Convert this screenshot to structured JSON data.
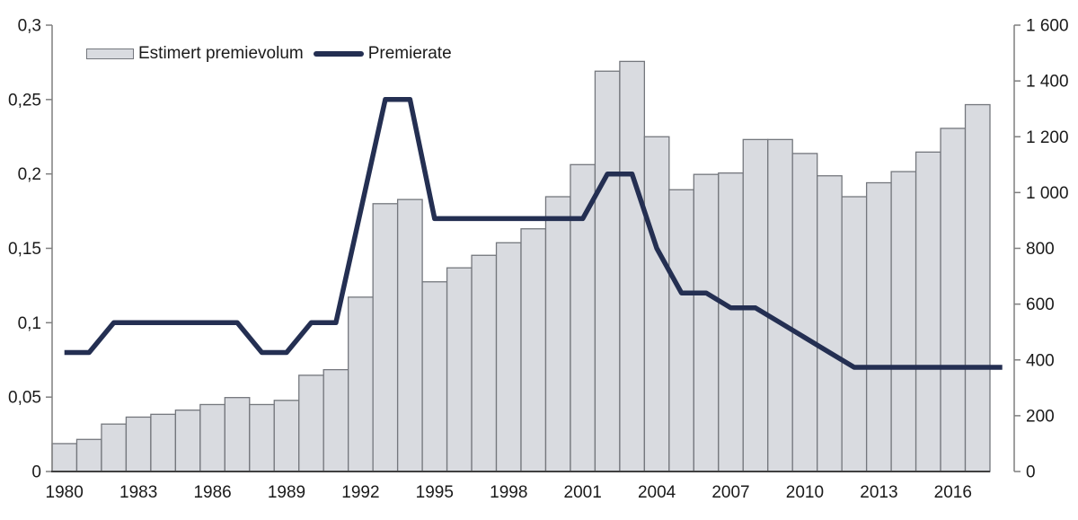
{
  "chart_data": {
    "type": "combo_bar_line",
    "title": "",
    "xlabel": "",
    "ylabel_left": "",
    "ylabel_right": "",
    "categories": [
      1980,
      1981,
      1982,
      1983,
      1984,
      1985,
      1986,
      1987,
      1988,
      1989,
      1990,
      1991,
      1992,
      1993,
      1994,
      1995,
      1996,
      1997,
      1998,
      1999,
      2000,
      2001,
      2002,
      2003,
      2004,
      2005,
      2006,
      2007,
      2008,
      2009,
      2010,
      2011,
      2012,
      2013,
      2014,
      2015,
      2016,
      2017
    ],
    "series": [
      {
        "name": "Estimert premievolum",
        "type": "bar",
        "axis": "right",
        "values": [
          100,
          115,
          170,
          195,
          205,
          220,
          240,
          265,
          240,
          255,
          345,
          365,
          625,
          960,
          975,
          680,
          730,
          775,
          820,
          870,
          985,
          1100,
          1435,
          1470,
          1200,
          1010,
          1065,
          1070,
          1190,
          1190,
          1140,
          1060,
          985,
          1035,
          1075,
          1145,
          1230,
          1315
        ]
      },
      {
        "name": "Premierate",
        "type": "line",
        "axis": "left",
        "values": [
          0.08,
          0.08,
          0.1,
          0.1,
          0.1,
          0.1,
          0.1,
          0.1,
          0.08,
          0.08,
          0.1,
          0.1,
          0.175,
          0.25,
          0.25,
          0.17,
          0.17,
          0.17,
          0.17,
          0.17,
          0.17,
          0.17,
          0.2,
          0.2,
          0.15,
          0.12,
          0.12,
          0.11,
          0.11,
          0.1,
          0.09,
          0.08,
          0.07,
          0.07,
          0.07,
          0.07,
          0.07,
          0.07
        ]
      }
    ],
    "left_axis": {
      "min": 0,
      "max": 0.3,
      "tick_values": [
        0,
        0.05,
        0.1,
        0.15,
        0.2,
        0.25,
        0.3
      ],
      "tick_labels": [
        "0",
        "0,05",
        "0,1",
        "0,15",
        "0,2",
        "0,25",
        "0,3"
      ]
    },
    "right_axis": {
      "min": 0,
      "max": 1600,
      "tick_values": [
        0,
        200,
        400,
        600,
        800,
        1000,
        1200,
        1400,
        1600
      ],
      "tick_labels": [
        "0",
        "200",
        "400",
        "600",
        "800",
        "1 000",
        "1 200",
        "1 400",
        "1 600"
      ]
    },
    "x_axis": {
      "tick_labels": [
        "1980",
        "1983",
        "1986",
        "1989",
        "1992",
        "1995",
        "1998",
        "2001",
        "2004",
        "2007",
        "2010",
        "2013",
        "2016"
      ]
    },
    "colors": {
      "bar_fill": "#d9dbe0",
      "bar_border": "#74777d",
      "line": "#242f52",
      "axis": "#7f7f7f",
      "baseline": "#404040",
      "text": "#1a1a1a"
    },
    "layout_hints": {
      "legend_position": "top-left-inside",
      "grid": false,
      "line_extends_one_period_beyond_last_bar": true
    }
  }
}
